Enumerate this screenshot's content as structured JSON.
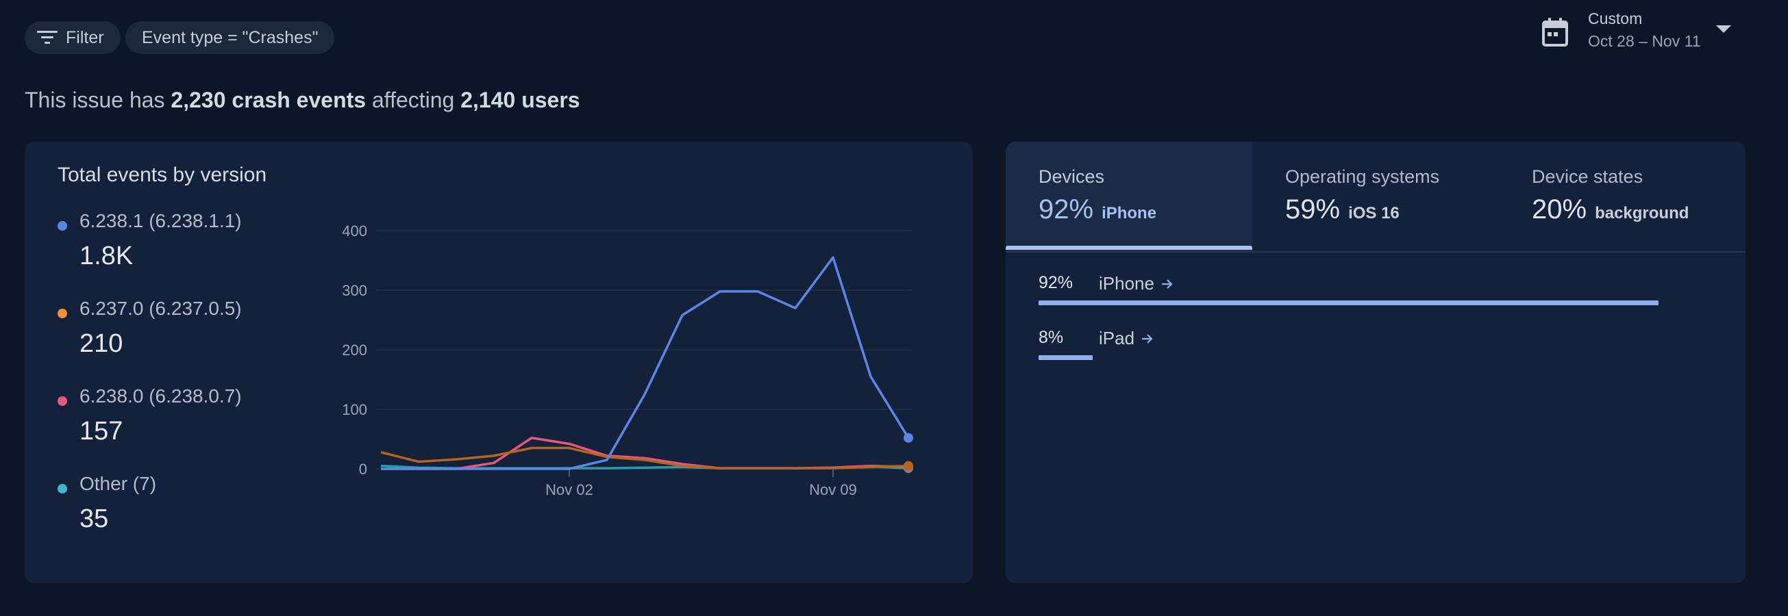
{
  "filters": {
    "filter_label": "Filter",
    "event_chip": "Event type = \"Crashes\""
  },
  "date_range": {
    "label": "Custom",
    "value": "Oct 28 – Nov 11"
  },
  "summary": {
    "prefix": "This issue has ",
    "events": "2,230 crash events",
    "middle": " affecting ",
    "users": "2,140 users"
  },
  "events_card": {
    "title": "Total events by version",
    "legend": [
      {
        "name": "6.238.1 (6.238.1.1)",
        "count": "1.8K",
        "color": "#5b86e5"
      },
      {
        "name": "6.237.0 (6.237.0.5)",
        "count": "210",
        "color": "#f0913a"
      },
      {
        "name": "6.238.0 (6.238.0.7)",
        "count": "157",
        "color": "#e7587e"
      },
      {
        "name": "Other (7)",
        "count": "35",
        "color": "#3fb6cf"
      }
    ]
  },
  "chart_data": {
    "type": "line",
    "x": [
      "Oct 28",
      "Oct 29",
      "Oct 30",
      "Oct 31",
      "Nov 01",
      "Nov 02",
      "Nov 03",
      "Nov 04",
      "Nov 05",
      "Nov 06",
      "Nov 07",
      "Nov 08",
      "Nov 09",
      "Nov 10",
      "Nov 11"
    ],
    "x_tick_labels": [
      "Nov 02",
      "Nov 09"
    ],
    "y_ticks": [
      "0",
      "100",
      "200",
      "300",
      "400"
    ],
    "ylim": [
      0,
      400
    ],
    "grid": true,
    "series": [
      {
        "name": "6.238.1 (6.238.1.1)",
        "color": "#5b86e5",
        "values": [
          0,
          0,
          0,
          0,
          0,
          0,
          15,
          125,
          258,
          298,
          298,
          270,
          355,
          155,
          52
        ]
      },
      {
        "name": "6.237.0 (6.237.0.5)",
        "color": "#b5651d",
        "values": [
          28,
          12,
          16,
          22,
          35,
          35,
          20,
          15,
          5,
          1,
          1,
          1,
          1,
          3,
          5
        ]
      },
      {
        "name": "6.238.0 (6.238.0.7)",
        "color": "#e7587e",
        "values": [
          0,
          0,
          0,
          10,
          52,
          42,
          22,
          18,
          8,
          1,
          1,
          1,
          2,
          5,
          3
        ]
      },
      {
        "name": "Other (7)",
        "color": "#2a9aa8",
        "values": [
          5,
          2,
          1,
          1,
          1,
          1,
          1,
          2,
          3,
          1,
          1,
          1,
          2,
          4,
          1
        ]
      }
    ]
  },
  "tabs": [
    {
      "label": "Devices",
      "pct": "92%",
      "sub": "iPhone"
    },
    {
      "label": "Operating systems",
      "pct": "59%",
      "sub": "iOS 16"
    },
    {
      "label": "Device states",
      "pct": "20%",
      "sub": "background"
    }
  ],
  "breakdown": [
    {
      "pct": "92%",
      "name": "iPhone",
      "fraction": 0.92
    },
    {
      "pct": "8%",
      "name": "iPad",
      "fraction": 0.08
    }
  ]
}
